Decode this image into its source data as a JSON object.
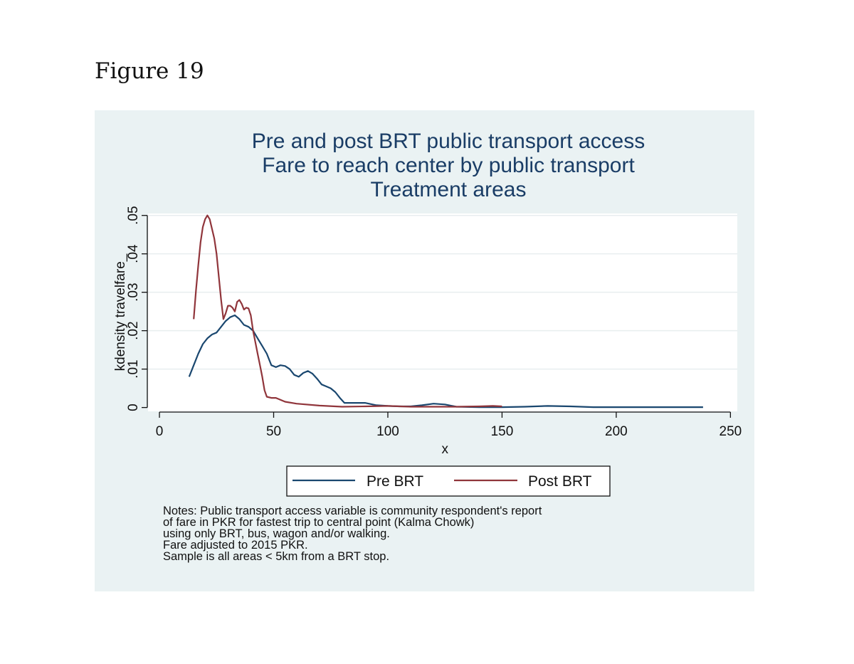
{
  "figure_label": "Figure 19",
  "chart_data": {
    "type": "line",
    "title": [
      "Pre and post BRT public transport access",
      "Fare to reach center by public transport",
      "Treatment areas"
    ],
    "xlabel": "x",
    "ylabel": "kdensity travelfare_",
    "xlim": [
      -5,
      253
    ],
    "ylim": [
      -0.001,
      0.0505
    ],
    "x_ticks": [
      0,
      50,
      100,
      150,
      200,
      250
    ],
    "x_tick_labels": [
      "0",
      "50",
      "100",
      "150",
      "200",
      "250"
    ],
    "y_ticks": [
      0,
      0.01,
      0.02,
      0.03,
      0.04,
      0.05
    ],
    "y_tick_labels": [
      "0",
      ".01",
      ".02",
      ".03",
      ".04",
      ".05"
    ],
    "grid": true,
    "legend_position": "bottom",
    "series": [
      {
        "name": "Pre BRT",
        "color": "#1a476f",
        "x": [
          13,
          15,
          17,
          19,
          21,
          23,
          25,
          27,
          29,
          31,
          33,
          35,
          37,
          39,
          41,
          43,
          45,
          47,
          49,
          51,
          53,
          55,
          57,
          59,
          61,
          63,
          65,
          67,
          69,
          71,
          73,
          75,
          77,
          79,
          81,
          85,
          90,
          95,
          100,
          105,
          110,
          115,
          120,
          125,
          130,
          140,
          150,
          160,
          170,
          180,
          190,
          200,
          210,
          220,
          230,
          238
        ],
        "values": [
          0.008,
          0.011,
          0.014,
          0.0165,
          0.018,
          0.019,
          0.0195,
          0.021,
          0.0225,
          0.0235,
          0.024,
          0.023,
          0.0215,
          0.021,
          0.02,
          0.018,
          0.016,
          0.014,
          0.011,
          0.0105,
          0.011,
          0.0108,
          0.01,
          0.0085,
          0.008,
          0.009,
          0.0095,
          0.0088,
          0.0075,
          0.006,
          0.0055,
          0.005,
          0.004,
          0.0025,
          0.0012,
          0.0012,
          0.0012,
          0.0006,
          0.0004,
          0.0003,
          0.0003,
          0.0006,
          0.001,
          0.0008,
          0.0002,
          0.0001,
          0.0001,
          0.0002,
          0.0004,
          0.0003,
          0.0001,
          0.0001,
          0.0001,
          0.0001,
          0.0001,
          0.0001
        ]
      },
      {
        "name": "Post BRT",
        "color": "#90353b",
        "x": [
          15,
          16,
          17,
          18,
          19,
          20,
          21,
          22,
          23,
          24,
          25,
          26,
          27,
          28,
          29,
          30,
          31,
          32,
          33,
          34,
          35,
          36,
          37,
          38,
          39,
          40,
          41,
          42,
          43,
          44,
          45,
          46,
          47,
          49,
          51,
          55,
          60,
          70,
          80,
          90,
          100,
          110,
          120,
          130,
          140,
          146,
          150
        ],
        "values": [
          0.023,
          0.0305,
          0.037,
          0.043,
          0.047,
          0.049,
          0.05,
          0.049,
          0.0465,
          0.044,
          0.04,
          0.034,
          0.028,
          0.023,
          0.0245,
          0.0265,
          0.0265,
          0.026,
          0.025,
          0.0275,
          0.028,
          0.027,
          0.0255,
          0.026,
          0.0258,
          0.024,
          0.02,
          0.017,
          0.014,
          0.011,
          0.008,
          0.0045,
          0.0028,
          0.0025,
          0.0025,
          0.0015,
          0.001,
          0.0005,
          0.0002,
          0.0003,
          0.0004,
          0.0002,
          0.0002,
          0.0002,
          0.0003,
          0.0004,
          0.0003
        ]
      }
    ]
  },
  "notes": [
    "Notes: Public transport access variable is community respondent's report",
    "of fare in PKR for fastest trip to central point (Kalma Chowk)",
    "using only BRT, bus, wagon and/or walking.",
    "Fare adjusted to 2015 PKR.",
    "Sample is all areas < 5km from a BRT stop."
  ]
}
